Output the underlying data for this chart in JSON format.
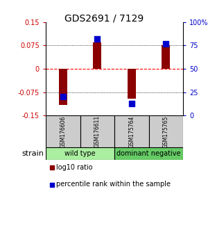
{
  "title": "GDS2691 / 7129",
  "samples": [
    "GSM176606",
    "GSM176611",
    "GSM175764",
    "GSM175765"
  ],
  "log10_ratio": [
    -0.115,
    0.085,
    -0.095,
    0.075
  ],
  "percentile_rank": [
    20,
    82,
    13,
    77
  ],
  "groups": [
    {
      "label": "wild type",
      "samples": [
        0,
        1
      ],
      "color": "#AAEEA0"
    },
    {
      "label": "dominant negative",
      "samples": [
        2,
        3
      ],
      "color": "#66CC66"
    }
  ],
  "ylim_left": [
    -0.15,
    0.15
  ],
  "ylim_right": [
    0,
    100
  ],
  "yticks_left": [
    -0.15,
    -0.075,
    0,
    0.075,
    0.15
  ],
  "ytick_labels_left": [
    "-0.15",
    "-0.075",
    "0",
    "0.075",
    "0.15"
  ],
  "yticks_right": [
    0,
    25,
    50,
    75,
    100
  ],
  "ytick_labels_right": [
    "0",
    "25",
    "50",
    "75",
    "100%"
  ],
  "bar_color": "#8B0000",
  "dot_color": "#0000CC",
  "left_label_color": "#CC0000",
  "right_label_color": "#0000CC",
  "group_label": "strain",
  "legend_bar_label": "log10 ratio",
  "legend_dot_label": "percentile rank within the sample",
  "sample_box_color": "#CCCCCC",
  "background_color": "#ffffff",
  "bar_width": 0.25,
  "dot_size": 28
}
